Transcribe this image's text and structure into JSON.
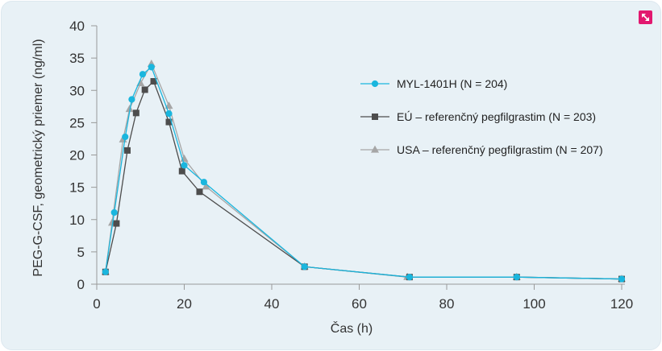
{
  "colors": {
    "background": "#e8f1f6",
    "badge": "#e2186f",
    "axis": "#999999"
  },
  "icons": {
    "corner_badge": "expand-badge-icon"
  },
  "chart_data": {
    "type": "line",
    "title": "",
    "xlabel": "Čas (h)",
    "ylabel": "PEG-G-CSF, geometrický priemer (ng/ml)",
    "xlim": [
      0,
      120
    ],
    "ylim": [
      0,
      40
    ],
    "xticks": [
      0,
      20,
      40,
      60,
      80,
      100,
      120
    ],
    "yticks": [
      0,
      5,
      10,
      15,
      20,
      25,
      30,
      35,
      40
    ],
    "xtick_labels": [
      "0",
      "20",
      "40",
      "60",
      "80",
      "100",
      "120"
    ],
    "ytick_labels": [
      "0",
      "5",
      "10",
      "15",
      "20",
      "25",
      "30",
      "35",
      "40"
    ],
    "grid": false,
    "legend_position": "right",
    "series": [
      {
        "name": "MYL-1401H (N = 204)",
        "color": "#1ab6de",
        "marker": "circle",
        "x": [
          2,
          4,
          6.5,
          8,
          10.5,
          12.5,
          16.5,
          20,
          24.5,
          47.5,
          71.5,
          96,
          120
        ],
        "y": [
          1.9,
          11.1,
          22.8,
          28.6,
          32.5,
          33.6,
          26.4,
          18.4,
          15.8,
          2.7,
          1.1,
          1.1,
          0.8
        ]
      },
      {
        "name": "EÚ – referenčný pegfilgrastim (N = 203)",
        "color": "#4d4d4d",
        "marker": "square",
        "x": [
          2,
          4.5,
          7,
          9,
          11,
          13,
          16.5,
          19.5,
          23.5,
          47.5,
          71.5,
          96,
          120
        ],
        "y": [
          1.9,
          9.4,
          20.7,
          26.5,
          30.1,
          31.4,
          25.1,
          17.5,
          14.3,
          2.7,
          1.1,
          1.1,
          0.8
        ]
      },
      {
        "name": "USA – referenčný pegfilgrastim (N = 207)",
        "color": "#a6a6a6",
        "marker": "triangle",
        "x": [
          2,
          3.5,
          6,
          7.5,
          10,
          12.5,
          16.5,
          20,
          25,
          47.5,
          71,
          96,
          120
        ],
        "y": [
          1.9,
          9.5,
          22.4,
          27.1,
          31.1,
          34.1,
          27.6,
          19.4,
          15.1,
          2.7,
          1.1,
          1.1,
          0.8
        ]
      }
    ]
  }
}
